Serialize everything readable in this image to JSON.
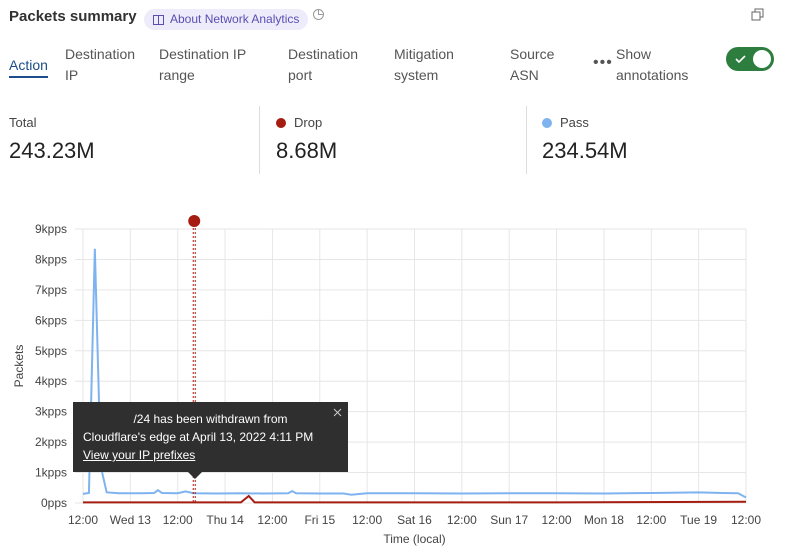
{
  "header": {
    "title": "Packets summary",
    "about_label": "About Network Analytics",
    "book_icon": "book-icon",
    "clock_icon": "pie-clock-icon",
    "expand_icon": "expand-icon"
  },
  "tabs": [
    {
      "label": "Action",
      "active": true
    },
    {
      "label": "Destination IP"
    },
    {
      "label": "Destination IP range"
    },
    {
      "label": "Destination port"
    },
    {
      "label": "Mitigation system"
    },
    {
      "label": "Source ASN"
    }
  ],
  "more_icon": "more-horizontal-icon",
  "annotations_toggle": {
    "label": "Show annotations",
    "on": true,
    "color": "#2d7d3e"
  },
  "stats": [
    {
      "label": "Total",
      "value": "243.23M"
    },
    {
      "label": "Drop",
      "value": "8.68M",
      "color": "#a51c11"
    },
    {
      "label": "Pass",
      "value": "234.54M",
      "color": "#7fb3f0"
    }
  ],
  "tooltip": {
    "prefix": "",
    "line1": "/24 has been withdrawn from",
    "line2": "Cloudflare's edge at April 13, 2022 4:11 PM",
    "link": "View your IP prefixes"
  },
  "chart_data": {
    "type": "line",
    "xlabel": "Time (local)",
    "ylabel": "Packets",
    "ylim": [
      0,
      9000
    ],
    "yticks": [
      "0pps",
      "1kpps",
      "2kpps",
      "3kpps",
      "4kpps",
      "5kpps",
      "6kpps",
      "7kpps",
      "8kpps",
      "9kpps"
    ],
    "xticks": [
      "12:00",
      "Wed 13",
      "12:00",
      "Thu 14",
      "12:00",
      "Fri 15",
      "12:00",
      "Sat 16",
      "12:00",
      "Sun 17",
      "12:00",
      "Mon 18",
      "12:00",
      "Tue 19",
      "12:00"
    ],
    "xrange": [
      "2022-04-12 12:00",
      "2022-04-19 12:00"
    ],
    "grid": true,
    "annotation": {
      "time": "2022-04-13 16:11",
      "color": "#a51c11"
    },
    "series": [
      {
        "name": "Pass",
        "color": "#7fb3f0",
        "points": [
          [
            "2022-04-12 12:00",
            300
          ],
          [
            "2022-04-12 13:30",
            330
          ],
          [
            "2022-04-12 15:00",
            8350
          ],
          [
            "2022-04-12 16:30",
            1200
          ],
          [
            "2022-04-12 18:00",
            350
          ],
          [
            "2022-04-12 21:00",
            320
          ],
          [
            "2022-04-13 00:00",
            320
          ],
          [
            "2022-04-13 03:00",
            320
          ],
          [
            "2022-04-13 06:00",
            330
          ],
          [
            "2022-04-13 07:00",
            420
          ],
          [
            "2022-04-13 08:00",
            330
          ],
          [
            "2022-04-13 12:00",
            320
          ],
          [
            "2022-04-13 14:00",
            380
          ],
          [
            "2022-04-13 16:00",
            320
          ],
          [
            "2022-04-13 22:00",
            310
          ],
          [
            "2022-04-14 04:00",
            320
          ],
          [
            "2022-04-14 10:00",
            310
          ],
          [
            "2022-04-14 16:00",
            320
          ],
          [
            "2022-04-14 17:00",
            390
          ],
          [
            "2022-04-14 18:00",
            320
          ],
          [
            "2022-04-15 00:00",
            310
          ],
          [
            "2022-04-15 06:00",
            310
          ],
          [
            "2022-04-15 08:00",
            270
          ],
          [
            "2022-04-15 12:00",
            320
          ],
          [
            "2022-04-16 00:00",
            320
          ],
          [
            "2022-04-16 12:00",
            310
          ],
          [
            "2022-04-17 00:00",
            320
          ],
          [
            "2022-04-17 12:00",
            320
          ],
          [
            "2022-04-18 00:00",
            310
          ],
          [
            "2022-04-18 12:00",
            330
          ],
          [
            "2022-04-19 00:00",
            350
          ],
          [
            "2022-04-19 06:00",
            330
          ],
          [
            "2022-04-19 10:00",
            320
          ],
          [
            "2022-04-19 12:00",
            180
          ]
        ]
      },
      {
        "name": "Drop",
        "color": "#a51c11",
        "points": [
          [
            "2022-04-12 12:00",
            20
          ],
          [
            "2022-04-13 12:00",
            20
          ],
          [
            "2022-04-14 04:00",
            20
          ],
          [
            "2022-04-14 06:00",
            230
          ],
          [
            "2022-04-14 07:30",
            20
          ],
          [
            "2022-04-15 12:00",
            20
          ],
          [
            "2022-04-17 12:00",
            20
          ],
          [
            "2022-04-19 12:00",
            40
          ]
        ]
      }
    ]
  }
}
